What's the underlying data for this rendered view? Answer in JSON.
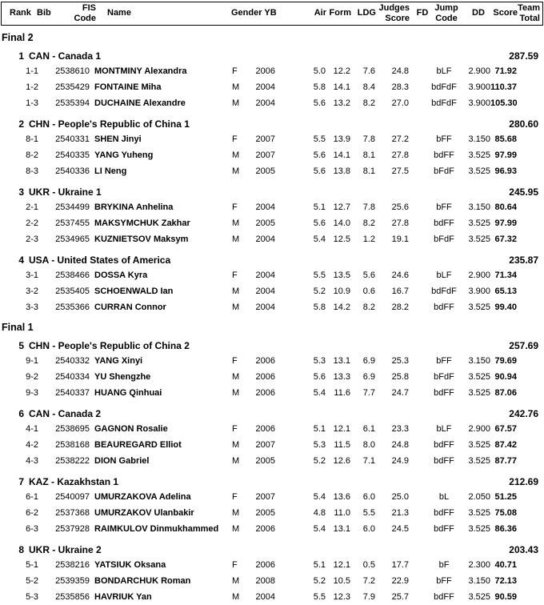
{
  "header": {
    "rank": "Rank",
    "bib": "Bib",
    "fis_code": "FIS\nCode",
    "name": "Name",
    "gender_yb": "Gender YB",
    "air": "Air",
    "form": "Form",
    "ldg": "LDG",
    "judges_score": "Judges\nScore",
    "fd": "FD",
    "jump_code": "Jump\nCode",
    "dd": "DD",
    "score": "Score",
    "team_total": "Team\nTotal"
  },
  "sections": [
    {
      "label": "Final 2",
      "teams": [
        {
          "rank": "1",
          "team_name": "CAN - Canada 1",
          "team_total": "287.59",
          "athletes": [
            {
              "bib": "1-1",
              "fis_code": "2538610",
              "name": "MONTMINY Alexandra",
              "gender": "F",
              "yb": "2006",
              "air": "5.0",
              "form": "12.2",
              "ldg": "7.6",
              "judges": "24.8",
              "fd": "",
              "jump_code": "bLF",
              "dd": "2.900",
              "score": "71.92"
            },
            {
              "bib": "1-2",
              "fis_code": "2535429",
              "name": "FONTAINE Miha",
              "gender": "M",
              "yb": "2004",
              "air": "5.8",
              "form": "14.1",
              "ldg": "8.4",
              "judges": "28.3",
              "fd": "",
              "jump_code": "bdFdF",
              "dd": "3.900",
              "score": "110.37"
            },
            {
              "bib": "1-3",
              "fis_code": "2535394",
              "name": "DUCHAINE Alexandre",
              "gender": "M",
              "yb": "2004",
              "air": "5.6",
              "form": "13.2",
              "ldg": "8.2",
              "judges": "27.0",
              "fd": "",
              "jump_code": "bdFdF",
              "dd": "3.900",
              "score": "105.30"
            }
          ]
        },
        {
          "rank": "2",
          "team_name": "CHN - People's Republic of China 1",
          "team_total": "280.60",
          "athletes": [
            {
              "bib": "8-1",
              "fis_code": "2540331",
              "name": "SHEN Jinyi",
              "gender": "F",
              "yb": "2007",
              "air": "5.5",
              "form": "13.9",
              "ldg": "7.8",
              "judges": "27.2",
              "fd": "",
              "jump_code": "bFF",
              "dd": "3.150",
              "score": "85.68"
            },
            {
              "bib": "8-2",
              "fis_code": "2540335",
              "name": "YANG Yuheng",
              "gender": "M",
              "yb": "2007",
              "air": "5.6",
              "form": "14.1",
              "ldg": "8.1",
              "judges": "27.8",
              "fd": "",
              "jump_code": "bdFF",
              "dd": "3.525",
              "score": "97.99"
            },
            {
              "bib": "8-3",
              "fis_code": "2540336",
              "name": "LI Neng",
              "gender": "M",
              "yb": "2005",
              "air": "5.6",
              "form": "13.8",
              "ldg": "8.1",
              "judges": "27.5",
              "fd": "",
              "jump_code": "bFdF",
              "dd": "3.525",
              "score": "96.93"
            }
          ]
        },
        {
          "rank": "3",
          "team_name": "UKR - Ukraine 1",
          "team_total": "245.95",
          "athletes": [
            {
              "bib": "2-1",
              "fis_code": "2534499",
              "name": "BRYKINA Anhelina",
              "gender": "F",
              "yb": "2004",
              "air": "5.1",
              "form": "12.7",
              "ldg": "7.8",
              "judges": "25.6",
              "fd": "",
              "jump_code": "bFF",
              "dd": "3.150",
              "score": "80.64"
            },
            {
              "bib": "2-2",
              "fis_code": "2537455",
              "name": "MAKSYMCHUK Zakhar",
              "gender": "M",
              "yb": "2005",
              "air": "5.6",
              "form": "14.0",
              "ldg": "8.2",
              "judges": "27.8",
              "fd": "",
              "jump_code": "bdFF",
              "dd": "3.525",
              "score": "97.99"
            },
            {
              "bib": "2-3",
              "fis_code": "2534965",
              "name": "KUZNIETSOV Maksym",
              "gender": "M",
              "yb": "2004",
              "air": "5.4",
              "form": "12.5",
              "ldg": "1.2",
              "judges": "19.1",
              "fd": "",
              "jump_code": "bFdF",
              "dd": "3.525",
              "score": "67.32"
            }
          ]
        },
        {
          "rank": "4",
          "team_name": "USA - United States of America",
          "team_total": "235.87",
          "athletes": [
            {
              "bib": "3-1",
              "fis_code": "2538466",
              "name": "DOSSA Kyra",
              "gender": "F",
              "yb": "2004",
              "air": "5.5",
              "form": "13.5",
              "ldg": "5.6",
              "judges": "24.6",
              "fd": "",
              "jump_code": "bLF",
              "dd": "2.900",
              "score": "71.34"
            },
            {
              "bib": "3-2",
              "fis_code": "2535405",
              "name": "SCHOENWALD Ian",
              "gender": "M",
              "yb": "2004",
              "air": "5.2",
              "form": "10.9",
              "ldg": "0.6",
              "judges": "16.7",
              "fd": "",
              "jump_code": "bdFdF",
              "dd": "3.900",
              "score": "65.13"
            },
            {
              "bib": "3-3",
              "fis_code": "2535366",
              "name": "CURRAN Connor",
              "gender": "M",
              "yb": "2004",
              "air": "5.8",
              "form": "14.2",
              "ldg": "8.2",
              "judges": "28.2",
              "fd": "",
              "jump_code": "bdFF",
              "dd": "3.525",
              "score": "99.40"
            }
          ]
        }
      ]
    },
    {
      "label": "Final 1",
      "teams": [
        {
          "rank": "5",
          "team_name": "CHN - People's Republic of China 2",
          "team_total": "257.69",
          "athletes": [
            {
              "bib": "9-1",
              "fis_code": "2540332",
              "name": "YANG Xinyi",
              "gender": "F",
              "yb": "2006",
              "air": "5.3",
              "form": "13.1",
              "ldg": "6.9",
              "judges": "25.3",
              "fd": "",
              "jump_code": "bFF",
              "dd": "3.150",
              "score": "79.69"
            },
            {
              "bib": "9-2",
              "fis_code": "2540334",
              "name": "YU Shengzhe",
              "gender": "M",
              "yb": "2006",
              "air": "5.6",
              "form": "13.3",
              "ldg": "6.9",
              "judges": "25.8",
              "fd": "",
              "jump_code": "bFdF",
              "dd": "3.525",
              "score": "90.94"
            },
            {
              "bib": "9-3",
              "fis_code": "2540337",
              "name": "HUANG Qinhuai",
              "gender": "M",
              "yb": "2006",
              "air": "5.4",
              "form": "11.6",
              "ldg": "7.7",
              "judges": "24.7",
              "fd": "",
              "jump_code": "bdFF",
              "dd": "3.525",
              "score": "87.06"
            }
          ]
        },
        {
          "rank": "6",
          "team_name": "CAN - Canada 2",
          "team_total": "242.76",
          "athletes": [
            {
              "bib": "4-1",
              "fis_code": "2538695",
              "name": "GAGNON Rosalie",
              "gender": "F",
              "yb": "2006",
              "air": "5.1",
              "form": "12.1",
              "ldg": "6.1",
              "judges": "23.3",
              "fd": "",
              "jump_code": "bLF",
              "dd": "2.900",
              "score": "67.57"
            },
            {
              "bib": "4-2",
              "fis_code": "2538168",
              "name": "BEAUREGARD Elliot",
              "gender": "M",
              "yb": "2007",
              "air": "5.3",
              "form": "11.5",
              "ldg": "8.0",
              "judges": "24.8",
              "fd": "",
              "jump_code": "bdFF",
              "dd": "3.525",
              "score": "87.42"
            },
            {
              "bib": "4-3",
              "fis_code": "2538222",
              "name": "DION Gabriel",
              "gender": "M",
              "yb": "2005",
              "air": "5.2",
              "form": "12.6",
              "ldg": "7.1",
              "judges": "24.9",
              "fd": "",
              "jump_code": "bdFF",
              "dd": "3.525",
              "score": "87.77"
            }
          ]
        },
        {
          "rank": "7",
          "team_name": "KAZ - Kazakhstan 1",
          "team_total": "212.69",
          "athletes": [
            {
              "bib": "6-1",
              "fis_code": "2540097",
              "name": "UMURZAKOVA Adelina",
              "gender": "F",
              "yb": "2007",
              "air": "5.4",
              "form": "13.6",
              "ldg": "6.0",
              "judges": "25.0",
              "fd": "",
              "jump_code": "bL",
              "dd": "2.050",
              "score": "51.25"
            },
            {
              "bib": "6-2",
              "fis_code": "2537368",
              "name": "UMURZAKOV Ulanbakir",
              "gender": "M",
              "yb": "2005",
              "air": "4.8",
              "form": "11.0",
              "ldg": "5.5",
              "judges": "21.3",
              "fd": "",
              "jump_code": "bdFF",
              "dd": "3.525",
              "score": "75.08"
            },
            {
              "bib": "6-3",
              "fis_code": "2537928",
              "name": "RAIMKULOV Dinmukhammed",
              "gender": "M",
              "yb": "2006",
              "air": "5.4",
              "form": "13.1",
              "ldg": "6.0",
              "judges": "24.5",
              "fd": "",
              "jump_code": "bdFF",
              "dd": "3.525",
              "score": "86.36"
            }
          ]
        },
        {
          "rank": "8",
          "team_name": "UKR - Ukraine 2",
          "team_total": "203.43",
          "athletes": [
            {
              "bib": "5-1",
              "fis_code": "2538216",
              "name": "YATSIUK Oksana",
              "gender": "F",
              "yb": "2006",
              "air": "5.1",
              "form": "12.1",
              "ldg": "0.5",
              "judges": "17.7",
              "fd": "",
              "jump_code": "bF",
              "dd": "2.300",
              "score": "40.71"
            },
            {
              "bib": "5-2",
              "fis_code": "2539359",
              "name": "BONDARCHUK Roman",
              "gender": "M",
              "yb": "2008",
              "air": "5.2",
              "form": "10.5",
              "ldg": "7.2",
              "judges": "22.9",
              "fd": "",
              "jump_code": "bFF",
              "dd": "3.150",
              "score": "72.13"
            },
            {
              "bib": "5-3",
              "fis_code": "2535856",
              "name": "HAVRIUK Yan",
              "gender": "M",
              "yb": "2004",
              "air": "5.5",
              "form": "12.3",
              "ldg": "7.9",
              "judges": "25.7",
              "fd": "",
              "jump_code": "bdFF",
              "dd": "3.525",
              "score": "90.59"
            }
          ]
        }
      ]
    }
  ]
}
